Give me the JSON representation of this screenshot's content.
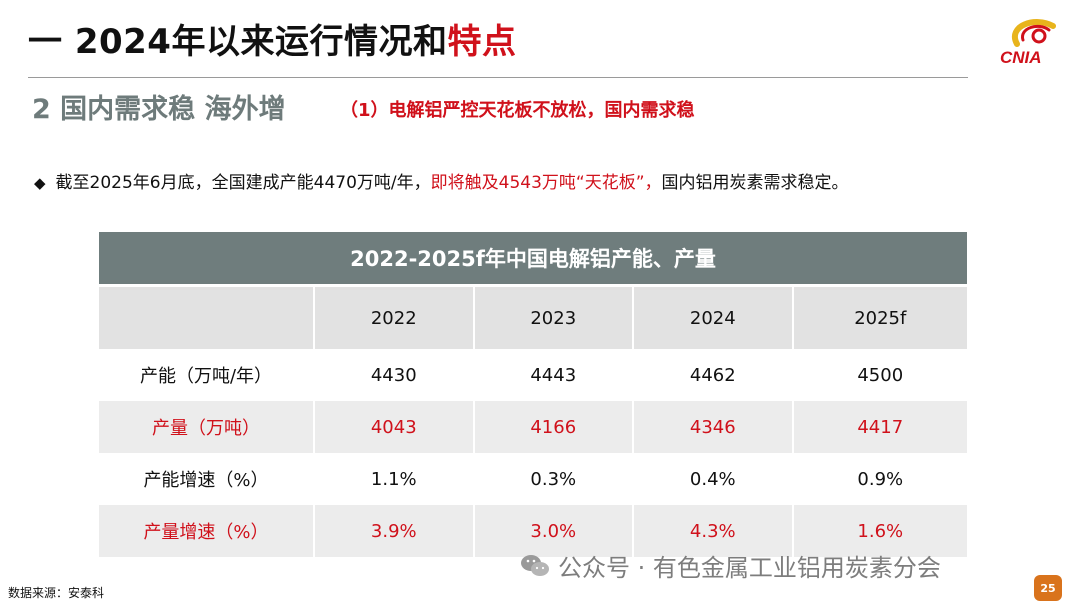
{
  "title": {
    "prefix": "一 2024年以来运行情况和",
    "highlight": "特点"
  },
  "logo": {
    "text": "CNIA",
    "icon": "cnia-logo"
  },
  "section": {
    "subtitle": "2 国内需求稳 海外增",
    "point": "（1）电解铝严控天花板不放松，国内需求稳"
  },
  "bullet": {
    "icon": "diamond-bullet",
    "text_before": "截至2025年6月底，全国建成产能4470万吨/年，",
    "text_red": "即将触及4543万吨“天花板”，",
    "text_after": "国内铝用炭素需求稳定。"
  },
  "table": {
    "caption": "2022-2025f年中国电解铝产能、产量",
    "columns": [
      "2022",
      "2023",
      "2024",
      "2025f"
    ],
    "rows": [
      {
        "label": "产能（万吨/年）",
        "values": [
          "4430",
          "4443",
          "4462",
          "4500"
        ],
        "highlight": false
      },
      {
        "label": "产量（万吨）",
        "values": [
          "4043",
          "4166",
          "4346",
          "4417"
        ],
        "highlight": true
      },
      {
        "label": "产能增速（%）",
        "values": [
          "1.1%",
          "0.3%",
          "0.4%",
          "0.9%"
        ],
        "highlight": false
      },
      {
        "label": "产量增速（%）",
        "values": [
          "3.9%",
          "3.0%",
          "4.3%",
          "1.6%"
        ],
        "highlight": true
      }
    ]
  },
  "source": "数据来源：安泰科",
  "watermark": {
    "icon": "wechat-icon",
    "text": "公众号 · 有色金属工业铝用炭素分会"
  },
  "page_number": "25",
  "colors": {
    "accent_red": "#d0111b",
    "header_gray": "#6f7d7d",
    "subtitle_gray": "#6e7b7b",
    "page_badge": "#d9731c"
  }
}
